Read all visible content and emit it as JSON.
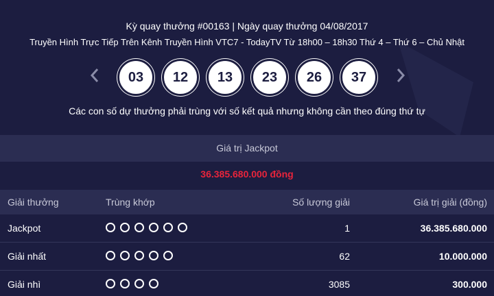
{
  "draw_info": "Kỳ quay thưởng #00163 | Ngày quay thưởng 04/08/2017",
  "broadcast": "Truyền Hình Trực Tiếp Trên Kênh Truyền Hình VTC7 - TodayTV Từ 18h00 – 18h30 Thứ 4 – Thứ 6 – Chủ Nhật",
  "numbers": [
    "03",
    "12",
    "13",
    "23",
    "26",
    "37"
  ],
  "note": "Các con số dự thưởng phải trùng với số kết quả nhưng không cần theo đúng thứ tự",
  "jackpot": {
    "label": "Giá trị Jackpot",
    "amount": "36.385.680.000 đồng"
  },
  "table": {
    "headers": [
      "Giải thưởng",
      "Trùng khớp",
      "Số lượng giải",
      "Giá trị giải (đồng)"
    ],
    "rows": [
      {
        "prize": "Jackpot",
        "match": 6,
        "count": "1",
        "value": "36.385.680.000"
      },
      {
        "prize": "Giải nhất",
        "match": 5,
        "count": "62",
        "value": "10.000.000"
      },
      {
        "prize": "Giải nhì",
        "match": 4,
        "count": "3085",
        "value": "300.000"
      }
    ]
  }
}
